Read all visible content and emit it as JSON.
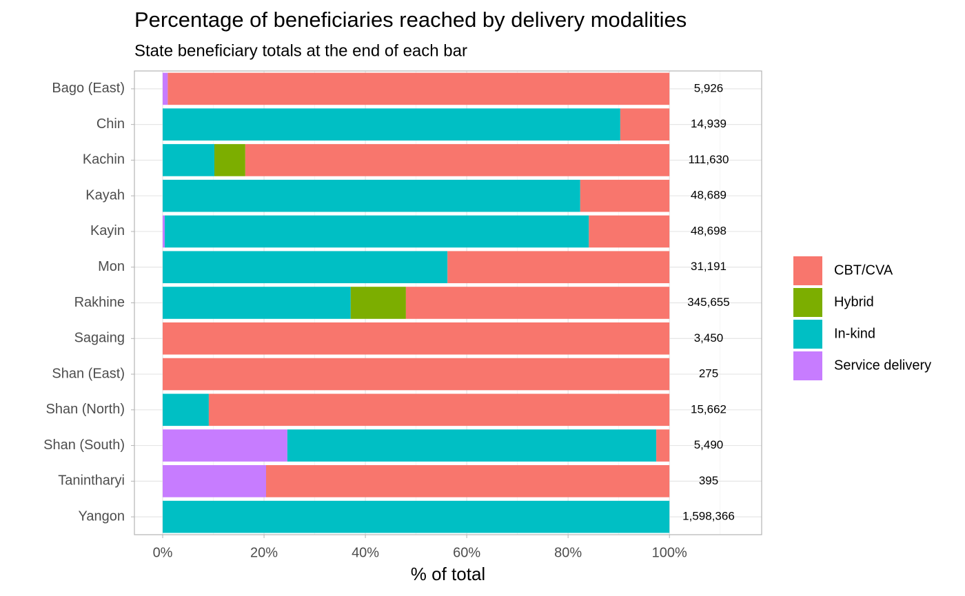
{
  "chart_data": {
    "type": "stacked-bar-horizontal",
    "title": "Percentage of beneficiaries reached by delivery modalities",
    "subtitle": "State beneficiary totals at the end of each bar",
    "x_label": "% of total",
    "categories": [
      "Bago (East)",
      "Chin",
      "Kachin",
      "Kayah",
      "Kayin",
      "Mon",
      "Rakhine",
      "Sagaing",
      "Shan (East)",
      "Shan (North)",
      "Shan (South)",
      "Tanintharyi",
      "Yangon"
    ],
    "series": [
      {
        "name": "CBT/CVA",
        "color": "#F8766D",
        "values": [
          99.0,
          9.7,
          83.7,
          17.6,
          15.9,
          43.8,
          52.0,
          100,
          100,
          90.9,
          2.6,
          79.6,
          0
        ]
      },
      {
        "name": "Hybrid",
        "color": "#7CAE00",
        "values": [
          0,
          0,
          6.1,
          0,
          0,
          0,
          10.9,
          0,
          0,
          0,
          0,
          0,
          0
        ]
      },
      {
        "name": "In-kind",
        "color": "#00BFC4",
        "values": [
          0,
          90.3,
          10.2,
          82.4,
          83.7,
          56.2,
          37.1,
          0,
          0,
          9.1,
          72.8,
          0,
          100
        ]
      },
      {
        "name": "Service delivery",
        "color": "#C77CFF",
        "values": [
          1.0,
          0,
          0,
          0,
          0.4,
          0,
          0,
          0,
          0,
          0,
          24.6,
          20.4,
          0
        ]
      }
    ],
    "totals": {
      "values": [
        5926,
        14939,
        111630,
        48689,
        48698,
        31191,
        345655,
        3450,
        275,
        15662,
        5490,
        395,
        1598366
      ],
      "value_labels": [
        "5,926",
        "14,939",
        "111,630",
        "48,689",
        "48,698",
        "31,191",
        "345,655",
        "3,450",
        "275",
        "15,662",
        "5,490",
        "395",
        "1,598,366"
      ]
    },
    "xlim": [
      -5.58,
      118.2
    ],
    "xticks": [
      {
        "value": 0,
        "label": "0%"
      },
      {
        "value": 20,
        "label": "20%"
      },
      {
        "value": 40,
        "label": "40%"
      },
      {
        "value": 60,
        "label": "60%"
      },
      {
        "value": 80,
        "label": "80%"
      },
      {
        "value": 100,
        "label": "100%"
      }
    ],
    "minor_xticks": [
      10,
      30,
      50,
      70,
      90,
      110
    ],
    "grid": true,
    "legend": "right"
  }
}
